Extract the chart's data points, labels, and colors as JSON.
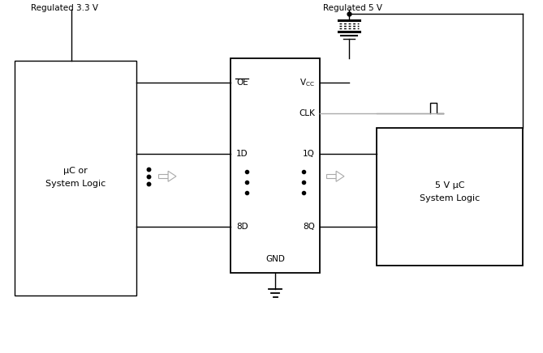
{
  "bg_color": "#ffffff",
  "line_color": "#000000",
  "gray_color": "#aaaaaa",
  "regulated_33": "Regulated 3.3 V",
  "regulated_5": "Regulated 5 V",
  "uc_line1": "μC or",
  "uc_line2": "System Logic",
  "uc5_line1": "5 V μC",
  "uc5_line2": "System Logic",
  "pin_OE": "OE",
  "pin_CLK": "CLK",
  "pin_1D": "1D",
  "pin_8D": "8D",
  "pin_1Q": "1Q",
  "pin_8Q": "8Q",
  "pin_GND": "GND",
  "font_size_label": 8,
  "font_size_pin": 7.5,
  "font_size_reg": 7.5
}
